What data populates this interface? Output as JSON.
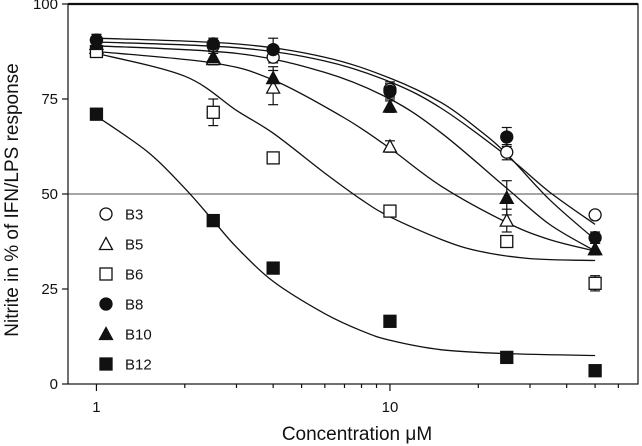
{
  "chart_data": {
    "type": "scatter",
    "x_scale": "log",
    "xlim": [
      0.8,
      70
    ],
    "ylim": [
      0,
      100
    ],
    "xlabel": "Concentration μM",
    "ylabel": "Nitrite in % of IFN/LPS response",
    "x_ticks": [
      {
        "value": 1,
        "label": "1"
      },
      {
        "value": 10,
        "label": "10"
      }
    ],
    "y_ticks": [
      {
        "value": 0,
        "label": "0"
      },
      {
        "value": 25,
        "label": "25"
      },
      {
        "value": 50,
        "label": "50"
      },
      {
        "value": 75,
        "label": "75"
      },
      {
        "value": 100,
        "label": "100"
      }
    ],
    "reference_lines": [
      {
        "y": 100,
        "style": "thick"
      },
      {
        "y": 50,
        "style": "thin"
      }
    ],
    "series": [
      {
        "name": "B3",
        "marker": "circle-open",
        "points": [
          [
            1,
            90.5
          ],
          [
            2.5,
            89
          ],
          [
            4,
            86
          ],
          [
            10,
            77.5
          ],
          [
            25,
            61
          ],
          [
            50,
            44.5
          ]
        ],
        "errors": [
          1.5,
          1,
          1.5,
          2,
          2,
          1
        ],
        "curve": [
          [
            1,
            90
          ],
          [
            3,
            88.5
          ],
          [
            6,
            85
          ],
          [
            10,
            79.5
          ],
          [
            15,
            72.5
          ],
          [
            25,
            60
          ],
          [
            35,
            50.5
          ],
          [
            50,
            42
          ]
        ]
      },
      {
        "name": "B5",
        "marker": "triangle-open",
        "points": [
          [
            1,
            88.5
          ],
          [
            2.5,
            85.5
          ],
          [
            4,
            78
          ],
          [
            10,
            62.5
          ],
          [
            25,
            43
          ],
          [
            50,
            35.5
          ]
        ],
        "errors": [
          1.5,
          1.5,
          4.5,
          1.5,
          3,
          1.5
        ],
        "curve": [
          [
            1,
            87.5
          ],
          [
            2.5,
            84.5
          ],
          [
            4,
            80
          ],
          [
            7,
            70
          ],
          [
            10,
            62
          ],
          [
            15,
            52
          ],
          [
            25,
            42.5
          ],
          [
            35,
            38
          ],
          [
            50,
            35
          ]
        ]
      },
      {
        "name": "B6",
        "marker": "square-open",
        "points": [
          [
            1,
            87.5
          ],
          [
            2.5,
            71.5
          ],
          [
            4,
            59.5
          ],
          [
            10,
            45.5
          ],
          [
            25,
            37.5
          ],
          [
            50,
            26.5
          ]
        ],
        "errors": [
          1.5,
          3.5,
          1.5,
          1.5,
          1.5,
          2
        ],
        "curve": [
          [
            1,
            87
          ],
          [
            2,
            81
          ],
          [
            3,
            72
          ],
          [
            4,
            66
          ],
          [
            6,
            55.5
          ],
          [
            8,
            48.5
          ],
          [
            10,
            44
          ],
          [
            15,
            38
          ],
          [
            20,
            35
          ],
          [
            30,
            33
          ],
          [
            50,
            32.5
          ]
        ]
      },
      {
        "name": "B8",
        "marker": "circle-filled",
        "points": [
          [
            1,
            90.5
          ],
          [
            2.5,
            89.5
          ],
          [
            4,
            88
          ],
          [
            10,
            77
          ],
          [
            25,
            65
          ],
          [
            50,
            38.5
          ]
        ],
        "errors": [
          1.5,
          1.5,
          3,
          2,
          2.5,
          1.5
        ],
        "curve": [
          [
            1,
            91
          ],
          [
            3,
            89.5
          ],
          [
            6,
            86
          ],
          [
            10,
            80.5
          ],
          [
            15,
            74
          ],
          [
            20,
            67
          ],
          [
            25,
            60.5
          ],
          [
            35,
            48.5
          ],
          [
            50,
            38
          ]
        ]
      },
      {
        "name": "B10",
        "marker": "triangle-filled",
        "points": [
          [
            1,
            89.5
          ],
          [
            2.5,
            86
          ],
          [
            4,
            80.5
          ],
          [
            10,
            73
          ],
          [
            25,
            49
          ],
          [
            50,
            35.5
          ]
        ],
        "errors": [
          1.5,
          1.5,
          3,
          1.5,
          4.5,
          1.5
        ],
        "curve": [
          [
            1,
            89
          ],
          [
            3,
            87
          ],
          [
            6,
            82
          ],
          [
            10,
            75
          ],
          [
            15,
            66
          ],
          [
            25,
            51.5
          ],
          [
            35,
            42
          ],
          [
            50,
            35
          ]
        ]
      },
      {
        "name": "B12",
        "marker": "square-filled",
        "points": [
          [
            1,
            71
          ],
          [
            2.5,
            43
          ],
          [
            4,
            30.5
          ],
          [
            10,
            16.5
          ],
          [
            25,
            7
          ],
          [
            50,
            3.5
          ]
        ],
        "errors": [
          0,
          0,
          0,
          0,
          0,
          0
        ],
        "curve": [
          [
            1,
            70.5
          ],
          [
            1.5,
            61
          ],
          [
            2,
            51.5
          ],
          [
            2.5,
            43
          ],
          [
            3,
            36
          ],
          [
            4,
            27
          ],
          [
            6,
            18.5
          ],
          [
            8,
            14
          ],
          [
            10,
            11.5
          ],
          [
            15,
            9
          ],
          [
            25,
            8
          ],
          [
            50,
            7.5
          ]
        ]
      }
    ]
  }
}
